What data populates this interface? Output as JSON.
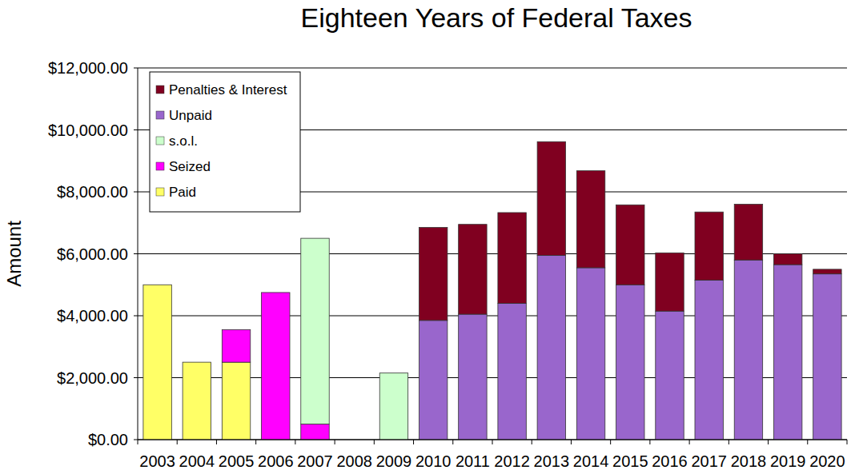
{
  "chart_data": {
    "type": "bar",
    "title": "Eighteen Years of Federal Taxes",
    "y_label": "Amount",
    "stacked": true,
    "grid": true,
    "legend": "upper left",
    "categories": [
      "2003",
      "2004",
      "2005",
      "2006",
      "2007",
      "2008",
      "2009",
      "2010",
      "2011",
      "2012",
      "2013",
      "2014",
      "2015",
      "2016",
      "2017",
      "2018",
      "2019",
      "2020"
    ],
    "series": [
      {
        "name": "Paid",
        "color": "#ffff66",
        "values": [
          5000,
          2500,
          2500,
          0,
          0,
          0,
          0,
          0,
          0,
          0,
          0,
          0,
          0,
          0,
          0,
          0,
          0,
          0
        ]
      },
      {
        "name": "Seized",
        "color": "#ff00ff",
        "values": [
          0,
          0,
          1050,
          4750,
          500,
          0,
          0,
          0,
          0,
          0,
          0,
          0,
          0,
          0,
          0,
          0,
          0,
          0
        ]
      },
      {
        "name": "s.o.l.",
        "color": "#ccffcc",
        "values": [
          0,
          0,
          0,
          0,
          6000,
          0,
          2150,
          0,
          0,
          0,
          0,
          0,
          0,
          0,
          0,
          0,
          0,
          0
        ]
      },
      {
        "name": "Unpaid",
        "color": "#9966cc",
        "values": [
          0,
          0,
          0,
          0,
          0,
          0,
          0,
          3850,
          4050,
          4400,
          5950,
          5550,
          5000,
          4150,
          5150,
          5800,
          5650,
          5350
        ]
      },
      {
        "name": "Penalties & Interest",
        "color": "#800020",
        "values": [
          0,
          0,
          0,
          0,
          0,
          0,
          0,
          3000,
          2900,
          2930,
          3670,
          3130,
          2580,
          1880,
          2200,
          1800,
          350,
          150
        ]
      }
    ],
    "ylim": [
      0,
      12000
    ],
    "yticks": [
      {
        "value": 0,
        "label": "$0.00"
      },
      {
        "value": 2000,
        "label": "$2,000.00"
      },
      {
        "value": 4000,
        "label": "$4,000.00"
      },
      {
        "value": 6000,
        "label": "$6,000.00"
      },
      {
        "value": 8000,
        "label": "$8,000.00"
      },
      {
        "value": 10000,
        "label": "$10,000.00"
      },
      {
        "value": 12000,
        "label": "$12,000.00"
      }
    ]
  }
}
